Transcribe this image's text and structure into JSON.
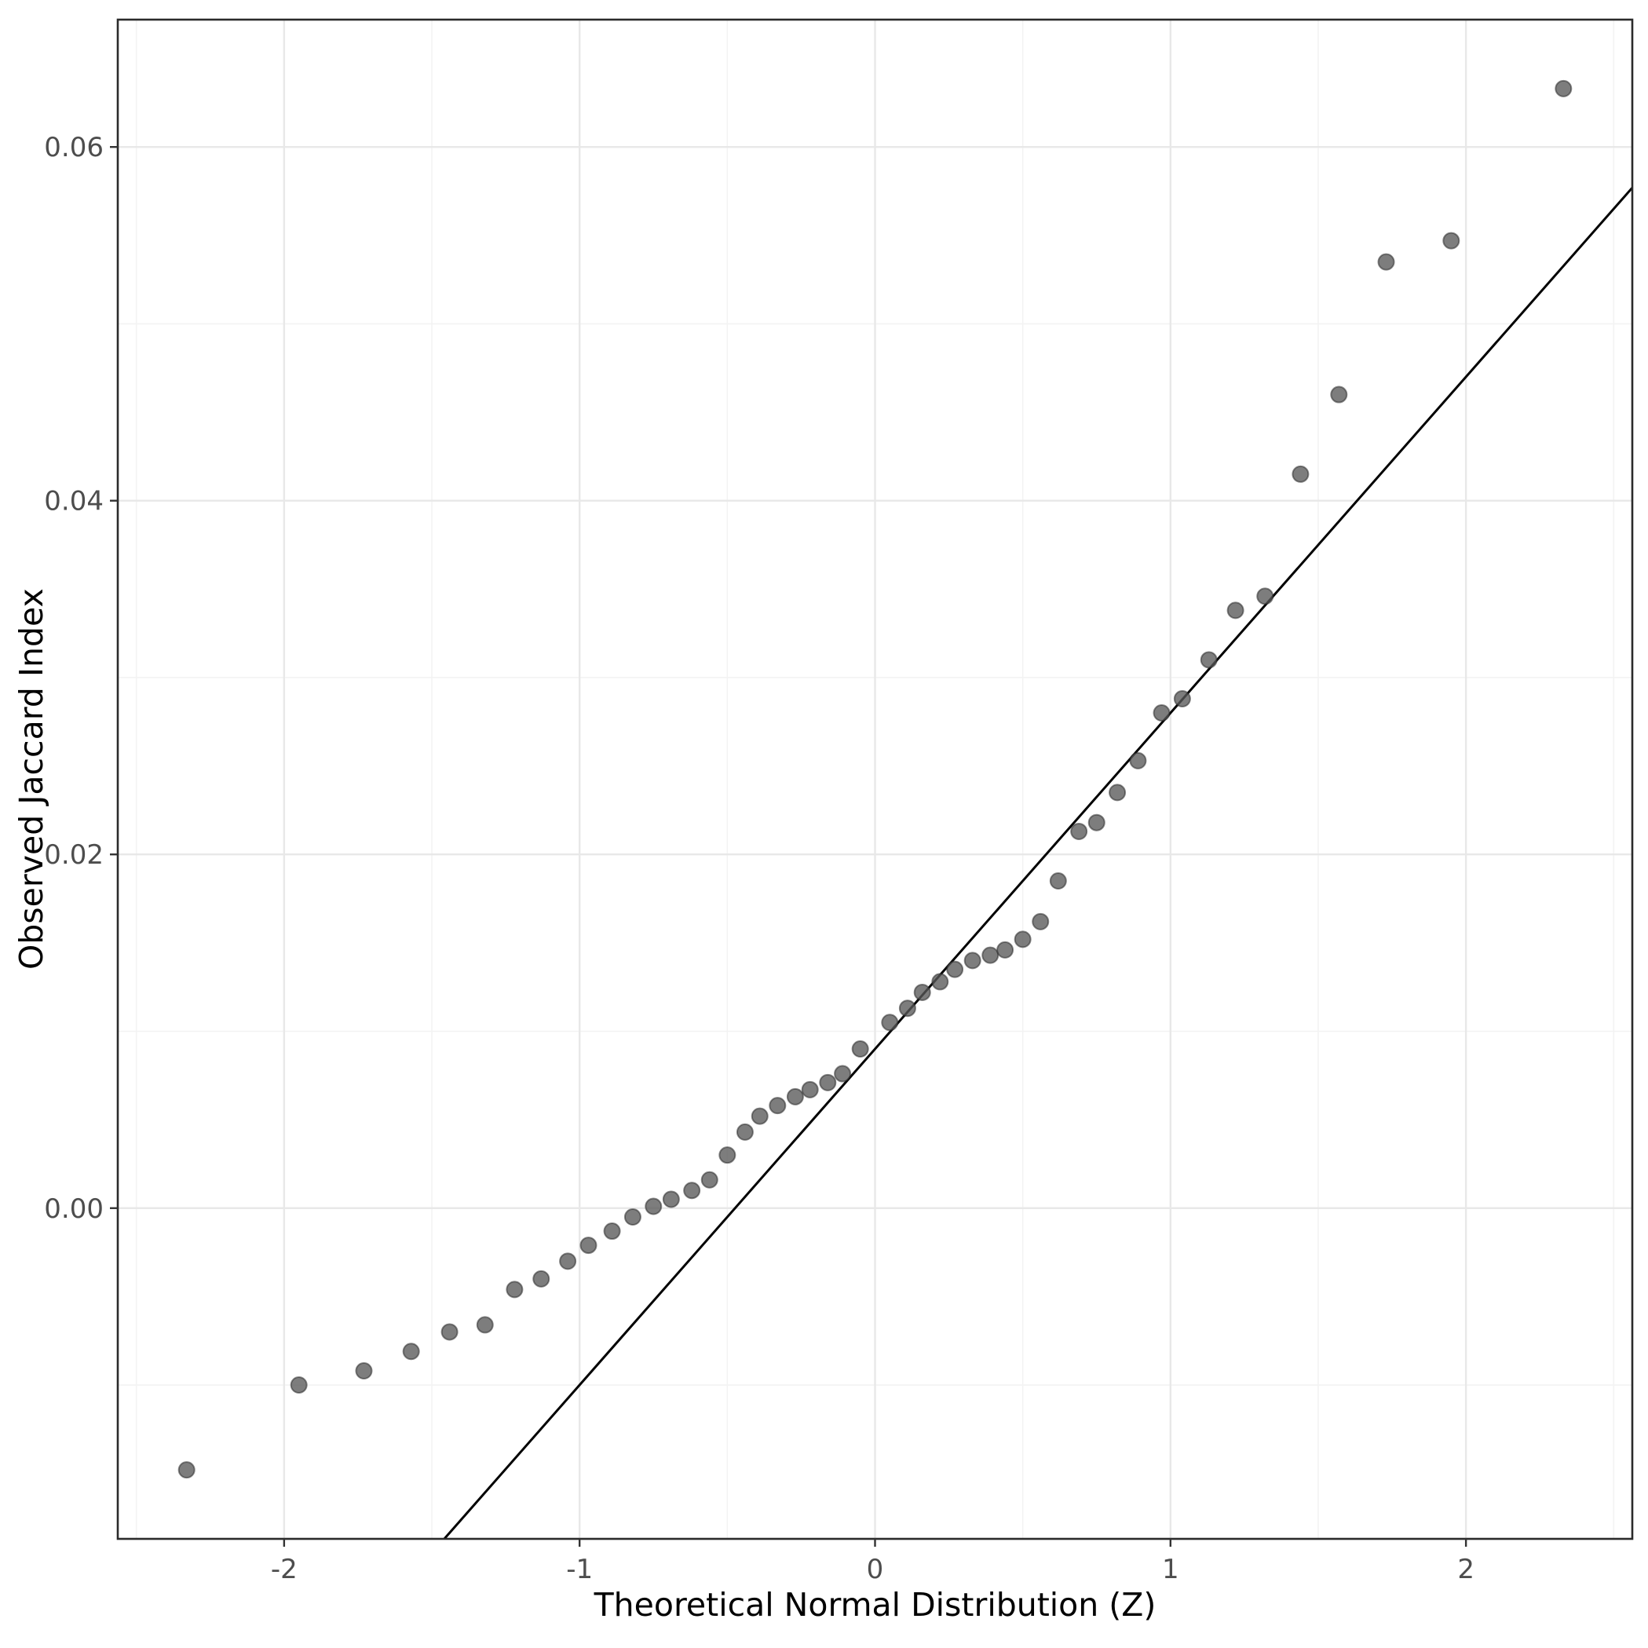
{
  "chart_data": {
    "type": "scatter",
    "title": "",
    "xlabel": "Theoretical Normal Distribution (Z)",
    "ylabel": "Observed Jaccard Index",
    "xlim": [
      -2.563,
      2.563
    ],
    "ylim": [
      -0.0187,
      0.0672
    ],
    "x_ticks": [
      {
        "v": -2,
        "label": "-2"
      },
      {
        "v": -1,
        "label": "-1"
      },
      {
        "v": 0,
        "label": "0"
      },
      {
        "v": 1,
        "label": "1"
      },
      {
        "v": 2,
        "label": "2"
      }
    ],
    "y_ticks": [
      {
        "v": 0.0,
        "label": "0.00"
      },
      {
        "v": 0.02,
        "label": "0.02"
      },
      {
        "v": 0.04,
        "label": "0.04"
      },
      {
        "v": 0.06,
        "label": "0.06"
      }
    ],
    "x_minor_gridlines": [
      -2.5,
      -1.5,
      -0.5,
      0.5,
      1.5,
      2.5
    ],
    "y_minor_gridlines": [
      -0.01,
      0.01,
      0.03,
      0.05
    ],
    "grid": "major+minor",
    "legend_position": "none",
    "reference_line": {
      "type": "qq-line",
      "slope": 0.019,
      "intercept": 0.009
    },
    "points": [
      [
        -2.33,
        -0.0148
      ],
      [
        -1.95,
        -0.01
      ],
      [
        -1.73,
        -0.0092
      ],
      [
        -1.57,
        -0.0081
      ],
      [
        -1.44,
        -0.007
      ],
      [
        -1.32,
        -0.0066
      ],
      [
        -1.22,
        -0.0046
      ],
      [
        -1.13,
        -0.004
      ],
      [
        -1.04,
        -0.003
      ],
      [
        -0.97,
        -0.0021
      ],
      [
        -0.89,
        -0.0013
      ],
      [
        -0.82,
        -0.0005
      ],
      [
        -0.75,
        0.0001
      ],
      [
        -0.69,
        0.0005
      ],
      [
        -0.62,
        0.001
      ],
      [
        -0.56,
        0.0016
      ],
      [
        -0.5,
        0.003
      ],
      [
        -0.44,
        0.0043
      ],
      [
        -0.39,
        0.0052
      ],
      [
        -0.33,
        0.0058
      ],
      [
        -0.27,
        0.0063
      ],
      [
        -0.22,
        0.0067
      ],
      [
        -0.16,
        0.0071
      ],
      [
        -0.11,
        0.0076
      ],
      [
        -0.05,
        0.009
      ],
      [
        0.05,
        0.0105
      ],
      [
        0.11,
        0.0113
      ],
      [
        0.16,
        0.0122
      ],
      [
        0.22,
        0.0128
      ],
      [
        0.27,
        0.0135
      ],
      [
        0.33,
        0.014
      ],
      [
        0.39,
        0.0143
      ],
      [
        0.44,
        0.0146
      ],
      [
        0.5,
        0.0152
      ],
      [
        0.56,
        0.0162
      ],
      [
        0.62,
        0.0185
      ],
      [
        0.69,
        0.0213
      ],
      [
        0.75,
        0.0218
      ],
      [
        0.82,
        0.0235
      ],
      [
        0.89,
        0.0253
      ],
      [
        0.97,
        0.028
      ],
      [
        1.04,
        0.0288
      ],
      [
        1.13,
        0.031
      ],
      [
        1.22,
        0.0338
      ],
      [
        1.32,
        0.0346
      ],
      [
        1.44,
        0.0415
      ],
      [
        1.57,
        0.046
      ],
      [
        1.73,
        0.0535
      ],
      [
        1.95,
        0.0547
      ],
      [
        2.33,
        0.0633
      ]
    ],
    "style": {
      "panel_bg": "#ffffff",
      "panel_border": "#2b2b2b",
      "grid_major": "#e8e8e8",
      "grid_minor": "#f3f3f3",
      "point_fill": "#585858",
      "point_stroke": "#2b2b2b",
      "line_color": "#000000",
      "tick_color": "#333333",
      "tick_label_color": "#4d4d4d",
      "axis_title_color": "#000000"
    }
  }
}
